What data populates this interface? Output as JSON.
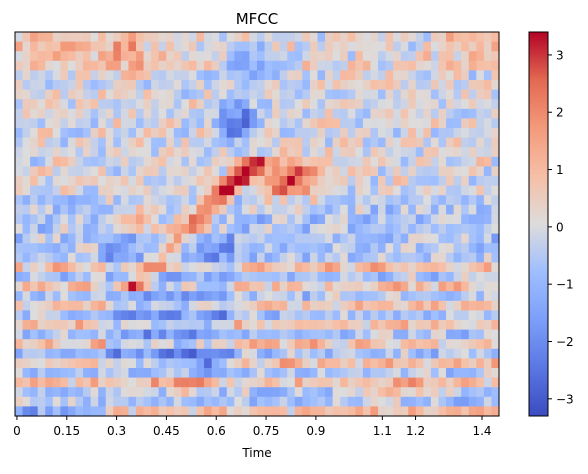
{
  "chart_data": {
    "type": "heatmap",
    "title": "MFCC",
    "xlabel": "Time",
    "ylabel": "",
    "x_ticks": [
      "0",
      "0.15",
      "0.3",
      "0.45",
      "0.6",
      "0.75",
      "0.9",
      "1.1",
      "1.2",
      "1.4"
    ],
    "x_tick_values": [
      0,
      0.15,
      0.3,
      0.45,
      0.6,
      0.75,
      0.9,
      1.1,
      1.2,
      1.4
    ],
    "xlim": [
      -0.0058,
      1.4512
    ],
    "n_frames": 64,
    "n_coefficients": 40,
    "colorbar": {
      "min": -3.3,
      "max": 3.4,
      "ticks": [
        -3,
        -2,
        -1,
        0,
        1,
        2,
        3
      ],
      "tick_labels": [
        "−3",
        "−2",
        "−1",
        "0",
        "1",
        "2",
        "3"
      ],
      "colormap": "coolwarm"
    }
  }
}
